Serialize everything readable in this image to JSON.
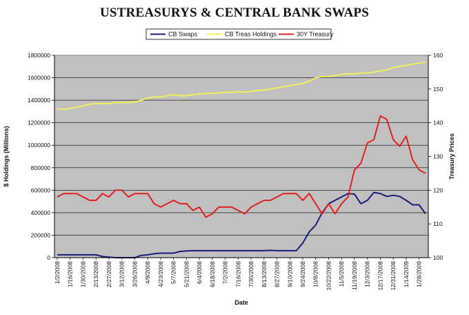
{
  "chart_data": {
    "type": "line",
    "title": "USTREASURYS & CENTRAL BANK SWAPS",
    "xlabel": "Date",
    "ylabel_left": "$ Holdings (Millions)",
    "ylabel_right": "Treasury Prices",
    "ylim_left": [
      0,
      1800000
    ],
    "ylim_right": [
      100,
      160
    ],
    "yticks_left": [
      "0",
      "200000",
      "400000",
      "600000",
      "800000",
      "1000000",
      "1200000",
      "1400000",
      "1600000",
      "1800000"
    ],
    "yticks_right": [
      "100",
      "110",
      "120",
      "130",
      "140",
      "150",
      "160"
    ],
    "grid": true,
    "plot_background": "#c0c0c0",
    "legend_position": "top",
    "x": [
      "1/2/2008",
      "1/9/2008",
      "1/16/2008",
      "1/23/2008",
      "1/30/2008",
      "2/6/2008",
      "2/13/2008",
      "2/20/2008",
      "2/27/2008",
      "3/5/2008",
      "3/12/2008",
      "3/19/2008",
      "3/26/2008",
      "4/2/2008",
      "4/9/2008",
      "4/16/2008",
      "4/23/2008",
      "4/30/2008",
      "5/7/2008",
      "5/14/2008",
      "5/21/2008",
      "5/28/2008",
      "6/4/2008",
      "6/11/2008",
      "6/18/2008",
      "6/25/2008",
      "7/2/2008",
      "7/9/2008",
      "7/16/2008",
      "7/23/2008",
      "7/30/2008",
      "8/6/2008",
      "8/13/2008",
      "8/20/2008",
      "8/27/2008",
      "9/3/2008",
      "9/10/2008",
      "9/17/2008",
      "9/24/2008",
      "10/1/2008",
      "10/8/2008",
      "10/15/2008",
      "10/22/2008",
      "10/29/2008",
      "11/5/2008",
      "11/12/2008",
      "11/19/2008",
      "11/26/2008",
      "12/3/2008",
      "12/10/2008",
      "12/17/2008",
      "12/24/2008",
      "12/31/2008",
      "1/7/2009",
      "1/14/2009",
      "1/21/2009",
      "1/28/2009",
      "2/4/2009"
    ],
    "xtick_labels": [
      "1/2/2008",
      "1/16/2008",
      "1/30/2008",
      "2/13/2008",
      "2/27/2008",
      "3/12/2008",
      "3/26/2008",
      "4/9/2008",
      "4/23/2008",
      "5/7/2008",
      "5/21/2008",
      "6/4/2008",
      "6/18/2008",
      "7/2/2008",
      "7/16/2008",
      "7/30/2008",
      "8/13/2008",
      "8/27/2008",
      "9/10/2008",
      "9/24/2008",
      "10/8/2008",
      "10/22/2008",
      "11/5/2008",
      "11/19/2008",
      "12/3/2008",
      "12/17/2008",
      "12/31/2008",
      "1/14/2009",
      "1/28/2009"
    ],
    "series": [
      {
        "name": "CB Swaps",
        "color": "#1a1a7a",
        "axis": "left",
        "values": [
          25000,
          25000,
          25000,
          25000,
          25000,
          25000,
          25000,
          10000,
          5000,
          0,
          0,
          0,
          0,
          20000,
          25000,
          35000,
          40000,
          40000,
          40000,
          55000,
          60000,
          62000,
          62000,
          62000,
          62000,
          62000,
          62000,
          62000,
          62000,
          62000,
          62000,
          62000,
          62000,
          65000,
          62000,
          62000,
          62000,
          62000,
          130000,
          230000,
          290000,
          400000,
          480000,
          510000,
          540000,
          570000,
          565000,
          480000,
          510000,
          580000,
          570000,
          545000,
          555000,
          545000,
          510000,
          470000,
          470000,
          390000
        ]
      },
      {
        "name": "CB Treas Holdings",
        "color": "#f0f05a",
        "axis": "left",
        "values": [
          1320000,
          1320000,
          1325000,
          1340000,
          1350000,
          1365000,
          1370000,
          1370000,
          1370000,
          1380000,
          1380000,
          1380000,
          1385000,
          1400000,
          1420000,
          1430000,
          1430000,
          1440000,
          1450000,
          1440000,
          1440000,
          1450000,
          1455000,
          1460000,
          1460000,
          1465000,
          1470000,
          1470000,
          1475000,
          1470000,
          1480000,
          1485000,
          1490000,
          1500000,
          1510000,
          1520000,
          1530000,
          1540000,
          1550000,
          1570000,
          1600000,
          1610000,
          1610000,
          1620000,
          1630000,
          1635000,
          1635000,
          1640000,
          1645000,
          1650000,
          1660000,
          1670000,
          1690000,
          1700000,
          1710000,
          1720000,
          1730000,
          1740000
        ]
      },
      {
        "name": "30Y Treasury",
        "color": "#e02020",
        "axis": "right",
        "values": [
          118,
          119,
          119,
          119,
          118,
          117,
          117,
          119,
          118,
          120,
          120,
          118,
          119,
          119,
          119,
          116,
          115,
          116,
          117,
          116,
          116,
          114,
          115,
          112,
          113,
          115,
          115,
          115,
          114,
          113,
          115,
          116,
          117,
          117,
          118,
          119,
          119,
          119,
          117,
          119,
          116,
          113,
          116,
          113,
          116,
          118,
          126,
          128,
          134,
          135,
          142,
          141,
          135,
          133,
          136,
          129,
          126,
          125
        ]
      }
    ]
  }
}
